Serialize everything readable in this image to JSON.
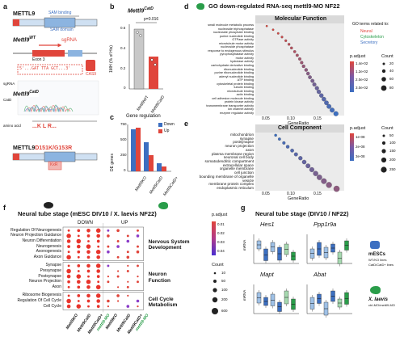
{
  "labels": {
    "a": "a",
    "b": "b",
    "c": "c",
    "d": "d",
    "e": "e",
    "f": "f",
    "g": "g"
  },
  "panel_a": {
    "gene": "METTL9",
    "sam_binding": "SAM binding",
    "sam_domain": "SAM domain",
    "allele_wt": "Mettl9",
    "allele_wt_sup": "WT",
    "sgrna": "sgRNA",
    "exon": "Exon 3",
    "cas9": "CAS9",
    "seq_ref": "5'...GAT TTA GCT...3'",
    "seq_label_1": "sgRNA",
    "seq_label_2": "CatD",
    "allele_catd": "Mettl9",
    "allele_catd_sup": "CatD",
    "amino_label": "amino acid",
    "aa_seq": "...K L R...",
    "mutant_gene": "METTL9",
    "mutant_suffix": "D151K/G153R",
    "mut_label": "KxR"
  },
  "panel_b": {
    "title": "Mettl9",
    "title_sup": "CatD",
    "pvalue": "p=0.016",
    "ylabel": "1MH (% of His)",
    "ticks": [
      "0.6",
      "0.4",
      "0.2",
      "0"
    ],
    "cats": [
      "Mettl9WT",
      "Mettl9CatD"
    ]
  },
  "panel_c": {
    "title": "Gene regulation",
    "legend_down": "Down",
    "legend_up": "Up",
    "ylabel": "DE genes",
    "ticks": [
      "750",
      "500",
      "250",
      "0"
    ],
    "cats": [
      "Mettl9KO",
      "Mettl9CatD",
      "Mettl9CatD+"
    ],
    "colors": {
      "down": "#3c6fc1",
      "up": "#e0453b"
    }
  },
  "panel_d": {
    "title": "GO down-regulated RNA-seq mettl9-MO NF22",
    "subtitle": "Molecular Function",
    "xlabel": "GeneRatio",
    "ticks": [
      "0.05",
      "0.10",
      "0.15"
    ],
    "go_title": "GO terms related to:",
    "go_cats": [
      "Neural",
      "Cytoskeleton",
      "Secretory"
    ],
    "padj_title": "p.adjust",
    "padj_ticks": [
      "1.4e-02",
      "1.2e-02",
      "2.0e-02",
      "3.0e-02"
    ],
    "count_title": "Count",
    "count_ticks": [
      "20",
      "40",
      "60",
      "80"
    ],
    "terms": [
      "small molecule metabolic process",
      "nucleoside triphosphatase",
      "nucleoside phosphate binding",
      "purine nucleotide binding",
      "GTPase activity",
      "microtubule motor activity",
      "nucleoside phosphatase",
      "response to endogenous stimulus",
      "pyrophosphatase activity",
      "motor activity",
      "hydrolase activity",
      "carbohydrate derivative binding",
      "ribonucleotide binding",
      "purine ribonucleotide binding",
      "adenyl nucleotide binding",
      "ATP binding",
      "cytoskeletal protein binding",
      "tubulin binding",
      "microtubule binding",
      "actin binding",
      "cell adhesion molecule binding",
      "protein kinase activity",
      "transmembrane transporter activity",
      "ion channel activity",
      "enzyme regulator activity"
    ],
    "ratios": [
      0.048,
      0.058,
      0.066,
      0.072,
      0.078,
      0.083,
      0.087,
      0.092,
      0.096,
      0.1,
      0.103,
      0.106,
      0.11,
      0.113,
      0.116,
      0.12,
      0.123,
      0.127,
      0.13,
      0.134,
      0.138,
      0.142,
      0.146,
      0.151,
      0.157
    ]
  },
  "panel_e": {
    "subtitle": "Cell Component",
    "xlabel": "GeneRatio",
    "ticks": [
      "0.05",
      "0.10",
      "0.15"
    ],
    "padj_title": "p.adjust",
    "padj_ticks": [
      "1e-08",
      "2e-08",
      "3e-08"
    ],
    "count_title": "Count",
    "count_ticks": [
      "50",
      "100",
      "150",
      "200",
      "250"
    ],
    "terms": [
      "mitochondrion",
      "synapse",
      "postsynapse",
      "neuron projection",
      "axon",
      "plasma membrane region",
      "neuronal cell body",
      "somatodendritic compartment",
      "extracellular space",
      "organelle membrane",
      "cell junction",
      "bounding membrane of organelle",
      "vesicle",
      "membrane protein complex",
      "endoplasmic reticulum"
    ],
    "ratios": [
      0.062,
      0.068,
      0.075,
      0.081,
      0.088,
      0.094,
      0.101,
      0.107,
      0.113,
      0.119,
      0.125,
      0.131,
      0.138,
      0.146,
      0.158
    ]
  },
  "panel_f": {
    "title": "Neural tube stage (mESC DIV10 / X. laevis NF22)",
    "down": "DOWN",
    "up": "UP",
    "padj_title": "p.adjust",
    "padj_ticks": [
      "0.01",
      "0.02",
      "0.03",
      "0.04"
    ],
    "count_title": "Count",
    "count_ticks": [
      "10",
      "50",
      "100",
      "200",
      "600"
    ],
    "groups": [
      {
        "label": "Nervous System Development",
        "rows": [
          "Regulation Of Neurogenesis",
          "Neuron Projection Guidance",
          "Neuron Differentiation",
          "Neurogenesis",
          "Axonogenesis",
          "Axon Guidance"
        ]
      },
      {
        "label": "Neuron Function",
        "rows": [
          "Synapse",
          "Presynapse",
          "Postsynapse",
          "Neuron Projection",
          "Axon"
        ]
      },
      {
        "label": "Cell Cycle Metabolism",
        "rows": [
          "Ribosome Biogenesis",
          "Regulation Of Cell Cycle",
          "Cell Cycle"
        ]
      }
    ],
    "cols": [
      "Mettl9KO",
      "Mettl9CatD",
      "Mettl9CatD+",
      "mettl9-MO",
      "Mettl9KO",
      "Mettl9CatD",
      "Mettl9CatD+",
      "mettl9-MO"
    ]
  },
  "panel_g": {
    "title": "Neural tube stage (DIV10 / NF22)",
    "genes": [
      "Hes1",
      "Ppp1r9a",
      "Mapt",
      "Abat"
    ],
    "ylabel": "mRNA",
    "legend_mesc": "mESCs",
    "legend_mesc_lines": [
      "WT/KO lines",
      "CatD/CatD+ lines"
    ],
    "legend_xl": "X. laevis",
    "legend_xl_line": "ctrl-MO/mettl9-MO"
  }
}
